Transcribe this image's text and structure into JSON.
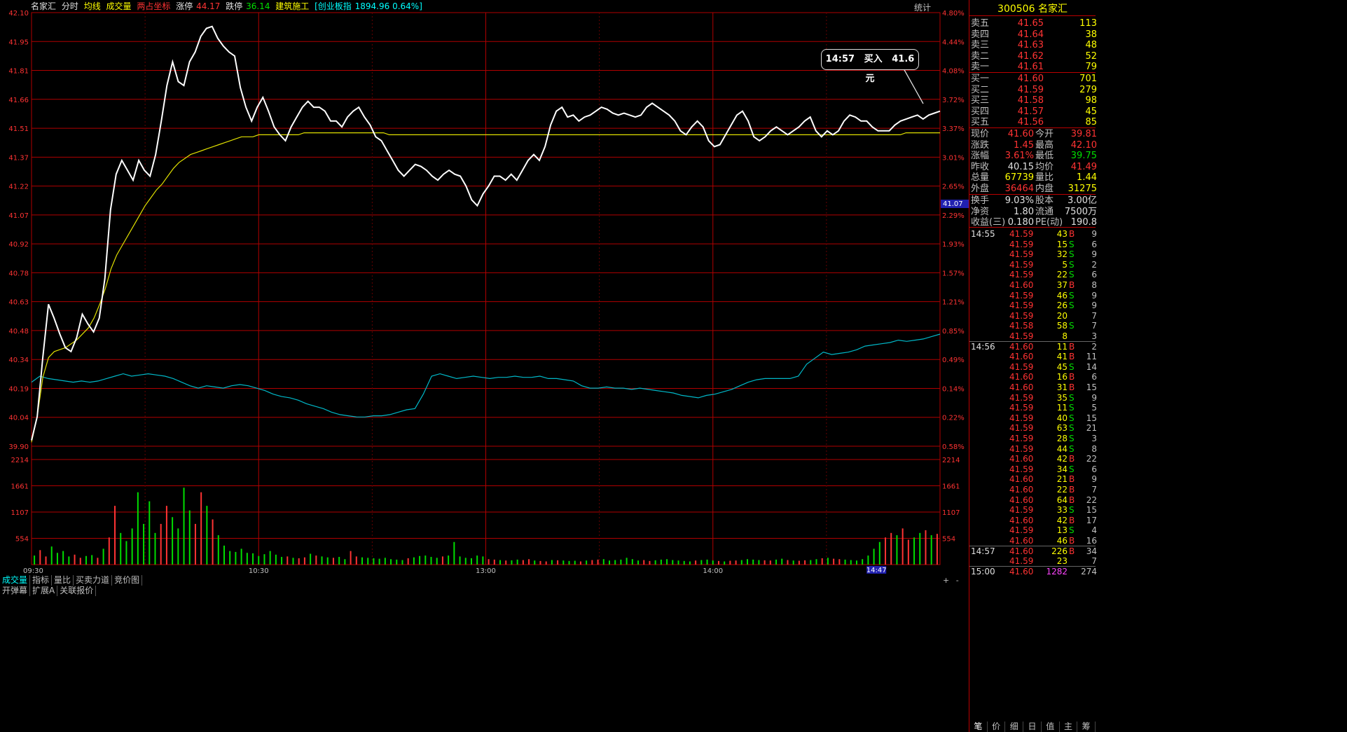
{
  "header": {
    "name": "名家汇",
    "tab_minute": "分时",
    "avg_line": "均线",
    "volume": "成交量",
    "overlay": "两占坐标",
    "limit_up_label": "涨停",
    "limit_up_value": "44.17",
    "limit_down_label": "跌停",
    "limit_down_value": "36.14",
    "sector": "建筑施工",
    "index_label": "[创业板指",
    "index_value": "1894.96 0.64%]",
    "stats_button": "统计"
  },
  "chart_data": {
    "type": "line",
    "price_axis": [
      "42.10",
      "41.95",
      "41.81",
      "41.66",
      "41.51",
      "41.37",
      "41.22",
      "41.07",
      "40.92",
      "40.78",
      "40.63",
      "40.48",
      "40.34",
      "40.19",
      "40.04",
      "39.90"
    ],
    "pct_axis": [
      "4.80%",
      "4.44%",
      "4.08%",
      "3.72%",
      "3.37%",
      "3.01%",
      "2.65%",
      "2.29%",
      "1.93%",
      "1.57%",
      "1.21%",
      "0.85%",
      "0.49%",
      "0.14%",
      "0.22%",
      "0.58%"
    ],
    "vol_axis": [
      "2214",
      "1661",
      "1107",
      "554"
    ],
    "x_labels": [
      "09:30",
      "10:30",
      "13:00",
      "14:00"
    ],
    "cursor_time": "14:47",
    "cursor_price": "41.07",
    "ylim": [
      39.9,
      42.1
    ],
    "price_series": [
      39.93,
      40.05,
      40.35,
      40.62,
      40.55,
      40.47,
      40.4,
      40.38,
      40.45,
      40.57,
      40.52,
      40.48,
      40.55,
      40.75,
      41.1,
      41.28,
      41.35,
      41.3,
      41.25,
      41.35,
      41.3,
      41.27,
      41.38,
      41.55,
      41.73,
      41.85,
      41.75,
      41.73,
      41.85,
      41.9,
      41.98,
      42.02,
      42.03,
      41.97,
      41.93,
      41.9,
      41.88,
      41.72,
      41.62,
      41.55,
      41.62,
      41.67,
      41.6,
      41.52,
      41.48,
      41.45,
      41.52,
      41.57,
      41.62,
      41.65,
      41.62,
      41.62,
      41.6,
      41.55,
      41.55,
      41.52,
      41.57,
      41.6,
      41.62,
      41.57,
      41.53,
      41.47,
      41.45,
      41.4,
      41.35,
      41.3,
      41.27,
      41.3,
      41.33,
      41.32,
      41.3,
      41.27,
      41.25,
      41.28,
      41.3,
      41.28,
      41.27,
      41.22,
      41.15,
      41.12,
      41.18,
      41.22,
      41.27,
      41.27,
      41.25,
      41.28,
      41.25,
      41.3,
      41.35,
      41.38,
      41.35,
      41.42,
      41.53,
      41.6,
      41.62,
      41.57,
      41.58,
      41.55,
      41.57,
      41.58,
      41.6,
      41.62,
      41.61,
      41.59,
      41.58,
      41.59,
      41.58,
      41.57,
      41.58,
      41.62,
      41.64,
      41.62,
      41.6,
      41.58,
      41.55,
      41.5,
      41.48,
      41.52,
      41.55,
      41.52,
      41.45,
      41.42,
      41.43,
      41.48,
      41.53,
      41.58,
      41.6,
      41.55,
      41.47,
      41.45,
      41.47,
      41.5,
      41.52,
      41.5,
      41.48,
      41.5,
      41.52,
      41.55,
      41.57,
      41.5,
      41.47,
      41.5,
      41.48,
      41.5,
      41.55,
      41.58,
      41.57,
      41.55,
      41.55,
      41.52,
      41.5,
      41.5,
      41.5,
      41.53,
      41.55,
      41.56,
      41.57,
      41.58,
      41.56,
      41.58,
      41.59,
      41.6
    ],
    "avg_series": [
      39.92,
      40.05,
      40.25,
      40.35,
      40.38,
      40.39,
      40.4,
      40.42,
      40.44,
      40.47,
      40.5,
      40.55,
      40.62,
      40.7,
      40.8,
      40.87,
      40.92,
      40.97,
      41.02,
      41.07,
      41.12,
      41.16,
      41.2,
      41.23,
      41.27,
      41.31,
      41.34,
      41.36,
      41.38,
      41.39,
      41.4,
      41.41,
      41.42,
      41.43,
      41.44,
      41.45,
      41.46,
      41.47,
      41.47,
      41.47,
      41.48,
      41.48,
      41.48,
      41.48,
      41.48,
      41.48,
      41.48,
      41.48,
      41.49,
      41.49,
      41.49,
      41.49,
      41.49,
      41.49,
      41.49,
      41.49,
      41.49,
      41.49,
      41.49,
      41.49,
      41.49,
      41.49,
      41.49,
      41.48,
      41.48,
      41.48,
      41.48,
      41.48,
      41.48,
      41.48,
      41.48,
      41.48,
      41.48,
      41.48,
      41.48,
      41.48,
      41.48,
      41.48,
      41.48,
      41.48,
      41.48,
      41.48,
      41.48,
      41.48,
      41.48,
      41.48,
      41.48,
      41.48,
      41.48,
      41.48,
      41.48,
      41.48,
      41.48,
      41.48,
      41.48,
      41.48,
      41.48,
      41.48,
      41.48,
      41.48,
      41.48,
      41.48,
      41.48,
      41.48,
      41.48,
      41.48,
      41.48,
      41.48,
      41.48,
      41.48,
      41.48,
      41.48,
      41.48,
      41.48,
      41.48,
      41.48,
      41.48,
      41.48,
      41.48,
      41.48,
      41.48,
      41.48,
      41.48,
      41.48,
      41.48,
      41.48,
      41.48,
      41.48,
      41.48,
      41.48,
      41.48,
      41.48,
      41.48,
      41.48,
      41.48,
      41.48,
      41.48,
      41.48,
      41.48,
      41.48,
      41.48,
      41.48,
      41.48,
      41.48,
      41.48,
      41.48,
      41.48,
      41.48,
      41.48,
      41.48,
      41.48,
      41.48,
      41.48,
      41.48,
      41.49,
      41.49,
      41.49,
      41.49,
      41.49,
      41.49,
      41.49
    ],
    "index_series": [
      0.55,
      0.6,
      0.58,
      0.57,
      0.56,
      0.55,
      0.56,
      0.55,
      0.56,
      0.58,
      0.6,
      0.62,
      0.6,
      0.61,
      0.62,
      0.61,
      0.6,
      0.58,
      0.55,
      0.52,
      0.5,
      0.52,
      0.51,
      0.5,
      0.52,
      0.53,
      0.52,
      0.5,
      0.48,
      0.45,
      0.43,
      0.42,
      0.4,
      0.37,
      0.35,
      0.33,
      0.3,
      0.28,
      0.27,
      0.26,
      0.26,
      0.27,
      0.27,
      0.28,
      0.3,
      0.32,
      0.33,
      0.45,
      0.6,
      0.62,
      0.6,
      0.58,
      0.59,
      0.6,
      0.59,
      0.58,
      0.59,
      0.59,
      0.6,
      0.59,
      0.59,
      0.6,
      0.58,
      0.58,
      0.57,
      0.56,
      0.52,
      0.5,
      0.5,
      0.51,
      0.5,
      0.5,
      0.49,
      0.5,
      0.49,
      0.48,
      0.47,
      0.46,
      0.44,
      0.43,
      0.42,
      0.44,
      0.45,
      0.47,
      0.49,
      0.52,
      0.55,
      0.57,
      0.58,
      0.58,
      0.58,
      0.58,
      0.6,
      0.7,
      0.75,
      0.8,
      0.78,
      0.79,
      0.8,
      0.82,
      0.85,
      0.86,
      0.87,
      0.88,
      0.9,
      0.89,
      0.9,
      0.91,
      0.93,
      0.95
    ],
    "volume_series": [
      200,
      320,
      180,
      400,
      260,
      300,
      180,
      220,
      150,
      190,
      210,
      150,
      350,
      600,
      1300,
      700,
      520,
      800,
      1600,
      900,
      1400,
      700,
      900,
      1300,
      1050,
      800,
      1700,
      1200,
      900,
      1600,
      1300,
      1000,
      650,
      420,
      300,
      280,
      350,
      260,
      250,
      190,
      230,
      300,
      220,
      170,
      180,
      150,
      140,
      160,
      240,
      200,
      180,
      160,
      150,
      170,
      120,
      300,
      180,
      160,
      150,
      140,
      130,
      150,
      120,
      110,
      100,
      140,
      160,
      190,
      200,
      170,
      150,
      180,
      200,
      500,
      180,
      150,
      140,
      200,
      180,
      120,
      110,
      100,
      90,
      95,
      110,
      100,
      120,
      90,
      80,
      70,
      100,
      95,
      90,
      80,
      85,
      70,
      90,
      100,
      110,
      120,
      90,
      100,
      110,
      150,
      120,
      90,
      100,
      80,
      95,
      110,
      120,
      100,
      90,
      80,
      70,
      90,
      100,
      110,
      90,
      80,
      70,
      85,
      90,
      100,
      120,
      110,
      100,
      95,
      90,
      110,
      130,
      100,
      90,
      85,
      95,
      100,
      120,
      140,
      150,
      130,
      120,
      110,
      100,
      90,
      120,
      200,
      350,
      500,
      600,
      700,
      650,
      800,
      550,
      600,
      700,
      760,
      650,
      680
    ]
  },
  "tooltip": {
    "time": "14:57",
    "action": "买入",
    "price": "41.6元"
  },
  "bottom_tabs": [
    "成交量",
    "指标",
    "量比",
    "买卖力道",
    "竞价图"
  ],
  "bottom_tabs2": [
    "开弹幕",
    "扩展A",
    "关联报价"
  ],
  "nav_buttons": [
    "+",
    "-"
  ],
  "right": {
    "code": "300506",
    "name": "名家汇",
    "asks": [
      {
        "label": "卖五",
        "price": "41.65",
        "vol": "113"
      },
      {
        "label": "卖四",
        "price": "41.64",
        "vol": "38"
      },
      {
        "label": "卖三",
        "price": "41.63",
        "vol": "48"
      },
      {
        "label": "卖二",
        "price": "41.62",
        "vol": "52"
      },
      {
        "label": "卖一",
        "price": "41.61",
        "vol": "79"
      }
    ],
    "bids": [
      {
        "label": "买一",
        "price": "41.60",
        "vol": "701"
      },
      {
        "label": "买二",
        "price": "41.59",
        "vol": "279"
      },
      {
        "label": "买三",
        "price": "41.58",
        "vol": "98"
      },
      {
        "label": "买四",
        "price": "41.57",
        "vol": "45"
      },
      {
        "label": "买五",
        "price": "41.56",
        "vol": "85"
      }
    ],
    "quote1": [
      {
        "l1": "现价",
        "v1": "41.60",
        "l2": "今开",
        "v2": "39.81"
      },
      {
        "l1": "涨跌",
        "v1": "1.45",
        "l2": "最高",
        "v2": "42.10"
      },
      {
        "l1": "涨幅",
        "v1": "3.61%",
        "l2": "最低",
        "v2": "39.75"
      },
      {
        "l1": "昨收",
        "v1": "40.15",
        "l2": "均价",
        "v2": "41.49"
      },
      {
        "l1": "总量",
        "v1": "67739",
        "l2": "量比",
        "v2": "1.44"
      },
      {
        "l1": "外盘",
        "v1": "36464",
        "l2": "内盘",
        "v2": "31275"
      }
    ],
    "quote2": [
      {
        "l1": "换手",
        "v1": "9.03%",
        "l2": "股本",
        "v2": "3.00亿"
      },
      {
        "l1": "净资",
        "v1": "1.80",
        "l2": "流通",
        "v2": "7500万"
      },
      {
        "l1": "收益(三)",
        "v1": "0.180",
        "l2": "PE(动)",
        "v2": "190.8"
      }
    ],
    "ticks": [
      {
        "t": "14:55",
        "p": "41.59",
        "v": "43",
        "bs": "B",
        "n": "9"
      },
      {
        "t": "",
        "p": "41.59",
        "v": "15",
        "bs": "S",
        "n": "6"
      },
      {
        "t": "",
        "p": "41.59",
        "v": "32",
        "bs": "S",
        "n": "9"
      },
      {
        "t": "",
        "p": "41.59",
        "v": "5",
        "bs": "S",
        "n": "2"
      },
      {
        "t": "",
        "p": "41.59",
        "v": "22",
        "bs": "S",
        "n": "6"
      },
      {
        "t": "",
        "p": "41.60",
        "v": "37",
        "bs": "B",
        "n": "8"
      },
      {
        "t": "",
        "p": "41.59",
        "v": "46",
        "bs": "S",
        "n": "9"
      },
      {
        "t": "",
        "p": "41.59",
        "v": "26",
        "bs": "S",
        "n": "9"
      },
      {
        "t": "",
        "p": "41.59",
        "v": "20",
        "bs": "",
        "n": "7"
      },
      {
        "t": "",
        "p": "41.58",
        "v": "58",
        "bs": "S",
        "n": "7"
      },
      {
        "t": "",
        "p": "41.59",
        "v": "8",
        "bs": "",
        "n": "3"
      },
      {
        "t": "14:56",
        "p": "41.60",
        "v": "11",
        "bs": "B",
        "n": "2"
      },
      {
        "t": "",
        "p": "41.60",
        "v": "41",
        "bs": "B",
        "n": "11"
      },
      {
        "t": "",
        "p": "41.59",
        "v": "45",
        "bs": "S",
        "n": "14"
      },
      {
        "t": "",
        "p": "41.60",
        "v": "16",
        "bs": "B",
        "n": "6"
      },
      {
        "t": "",
        "p": "41.60",
        "v": "31",
        "bs": "B",
        "n": "15"
      },
      {
        "t": "",
        "p": "41.59",
        "v": "35",
        "bs": "S",
        "n": "9"
      },
      {
        "t": "",
        "p": "41.59",
        "v": "11",
        "bs": "S",
        "n": "5"
      },
      {
        "t": "",
        "p": "41.59",
        "v": "40",
        "bs": "S",
        "n": "15"
      },
      {
        "t": "",
        "p": "41.59",
        "v": "63",
        "bs": "S",
        "n": "21"
      },
      {
        "t": "",
        "p": "41.59",
        "v": "28",
        "bs": "S",
        "n": "3"
      },
      {
        "t": "",
        "p": "41.59",
        "v": "44",
        "bs": "S",
        "n": "8"
      },
      {
        "t": "",
        "p": "41.60",
        "v": "42",
        "bs": "B",
        "n": "22"
      },
      {
        "t": "",
        "p": "41.59",
        "v": "34",
        "bs": "S",
        "n": "6"
      },
      {
        "t": "",
        "p": "41.60",
        "v": "21",
        "bs": "B",
        "n": "9"
      },
      {
        "t": "",
        "p": "41.60",
        "v": "22",
        "bs": "B",
        "n": "7"
      },
      {
        "t": "",
        "p": "41.60",
        "v": "64",
        "bs": "B",
        "n": "22"
      },
      {
        "t": "",
        "p": "41.59",
        "v": "33",
        "bs": "S",
        "n": "15"
      },
      {
        "t": "",
        "p": "41.60",
        "v": "42",
        "bs": "B",
        "n": "17"
      },
      {
        "t": "",
        "p": "41.59",
        "v": "13",
        "bs": "S",
        "n": "4"
      },
      {
        "t": "",
        "p": "41.60",
        "v": "46",
        "bs": "B",
        "n": "16"
      },
      {
        "t": "14:57",
        "p": "41.60",
        "v": "226",
        "bs": "B",
        "n": "34"
      },
      {
        "t": "",
        "p": "41.59",
        "v": "23",
        "bs": "",
        "n": "7"
      },
      {
        "t": "15:00",
        "p": "41.60",
        "v": "1282",
        "bs": "",
        "n": "274"
      }
    ],
    "bottom_tabs": [
      "笔",
      "价",
      "细",
      "日",
      "值",
      "主",
      "筹"
    ]
  },
  "colors": {
    "grid": "#b00000",
    "price": "#ffffff",
    "avg": "#e0e000",
    "index": "#00b8c8",
    "up": "#ff3333",
    "down": "#00dd00"
  }
}
